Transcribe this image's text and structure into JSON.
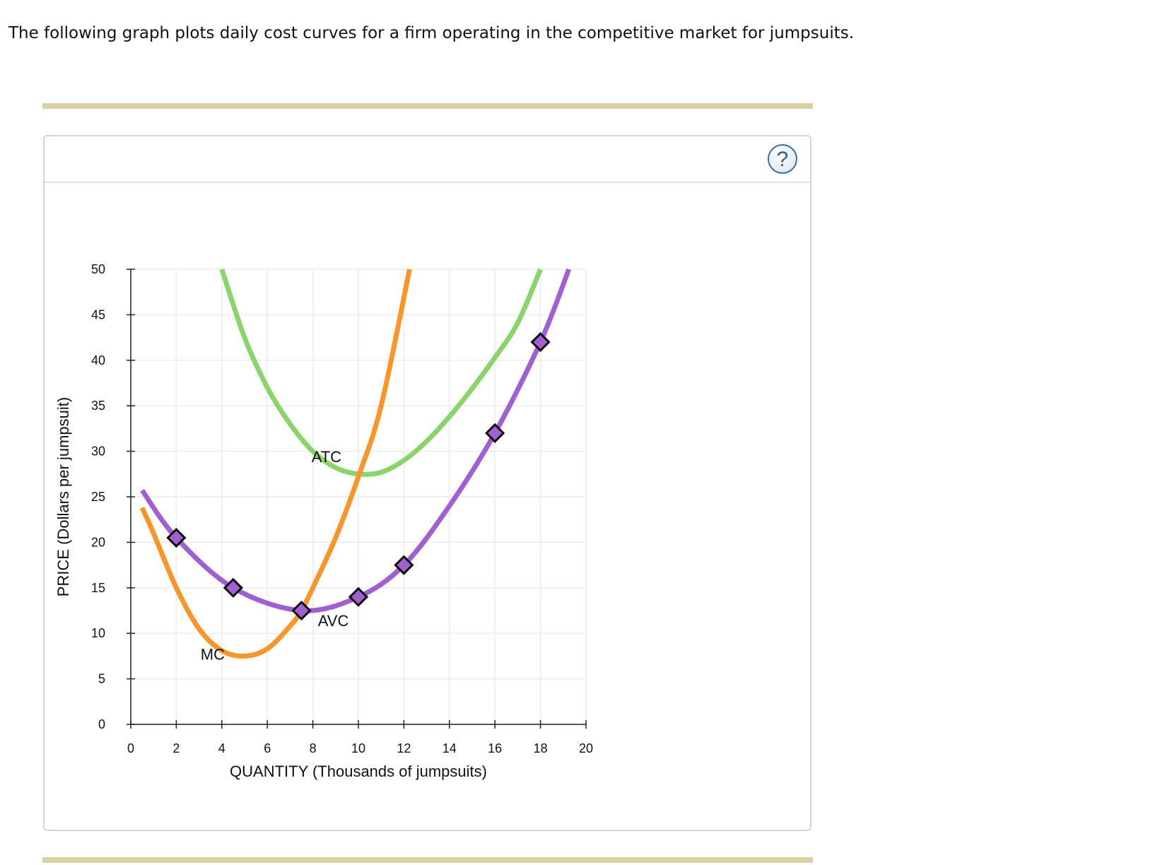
{
  "intro_text": "The following graph plots daily cost curves for a firm operating in the competitive market for jumpsuits.",
  "help_button": {
    "label": "?",
    "icon": "help-icon"
  },
  "chart_data": {
    "type": "line",
    "xlabel": "QUANTITY (Thousands of jumpsuits)",
    "ylabel": "PRICE (Dollars per jumpsuit)",
    "xlim": [
      0,
      20
    ],
    "ylim": [
      0,
      50
    ],
    "x_ticks": [
      0,
      2,
      4,
      6,
      8,
      10,
      12,
      14,
      16,
      18,
      20
    ],
    "y_ticks": [
      0,
      5,
      10,
      15,
      20,
      25,
      30,
      35,
      40,
      45,
      50
    ],
    "grid": true,
    "series": [
      {
        "name": "ATC",
        "color": "#8bd36c",
        "x": [
          4,
          5,
          6,
          7,
          8,
          9,
          10,
          11,
          12,
          13,
          14,
          15,
          16,
          17,
          18
        ],
        "y": [
          50,
          42.5,
          37,
          33,
          30,
          28.2,
          27.5,
          27.7,
          29,
          31.1,
          33.8,
          36.9,
          40.3,
          44.1,
          50
        ]
      },
      {
        "name": "MC",
        "color": "#f7962c",
        "x": [
          0.5,
          1,
          2,
          3,
          4,
          5,
          6,
          7,
          7.5,
          8,
          9,
          10,
          11,
          12.25
        ],
        "y": [
          23.8,
          21,
          15,
          10.5,
          8.1,
          7.5,
          8.3,
          10.8,
          12.5,
          15,
          20.5,
          27.2,
          35,
          50
        ]
      },
      {
        "name": "AVC",
        "color": "#a060cf",
        "x": [
          0.5,
          2,
          4.5,
          7.5,
          10,
          12,
          14,
          16,
          18,
          19.25
        ],
        "y": [
          25.7,
          20.5,
          15,
          12.5,
          14,
          17.5,
          24,
          32,
          42,
          50
        ],
        "markers": [
          {
            "x": 2,
            "y": 20.5
          },
          {
            "x": 4.5,
            "y": 15
          },
          {
            "x": 7.5,
            "y": 12.5
          },
          {
            "x": 10,
            "y": 14
          },
          {
            "x": 12,
            "y": 17.5
          },
          {
            "x": 16,
            "y": 32
          },
          {
            "x": 18,
            "y": 42
          }
        ]
      }
    ],
    "annotations": [
      {
        "text": "ATC",
        "x": 8.6,
        "y": 28.8
      },
      {
        "text": "MC",
        "x": 3.6,
        "y": 7.1
      },
      {
        "text": "AVC",
        "x": 8.9,
        "y": 10.8
      }
    ]
  }
}
